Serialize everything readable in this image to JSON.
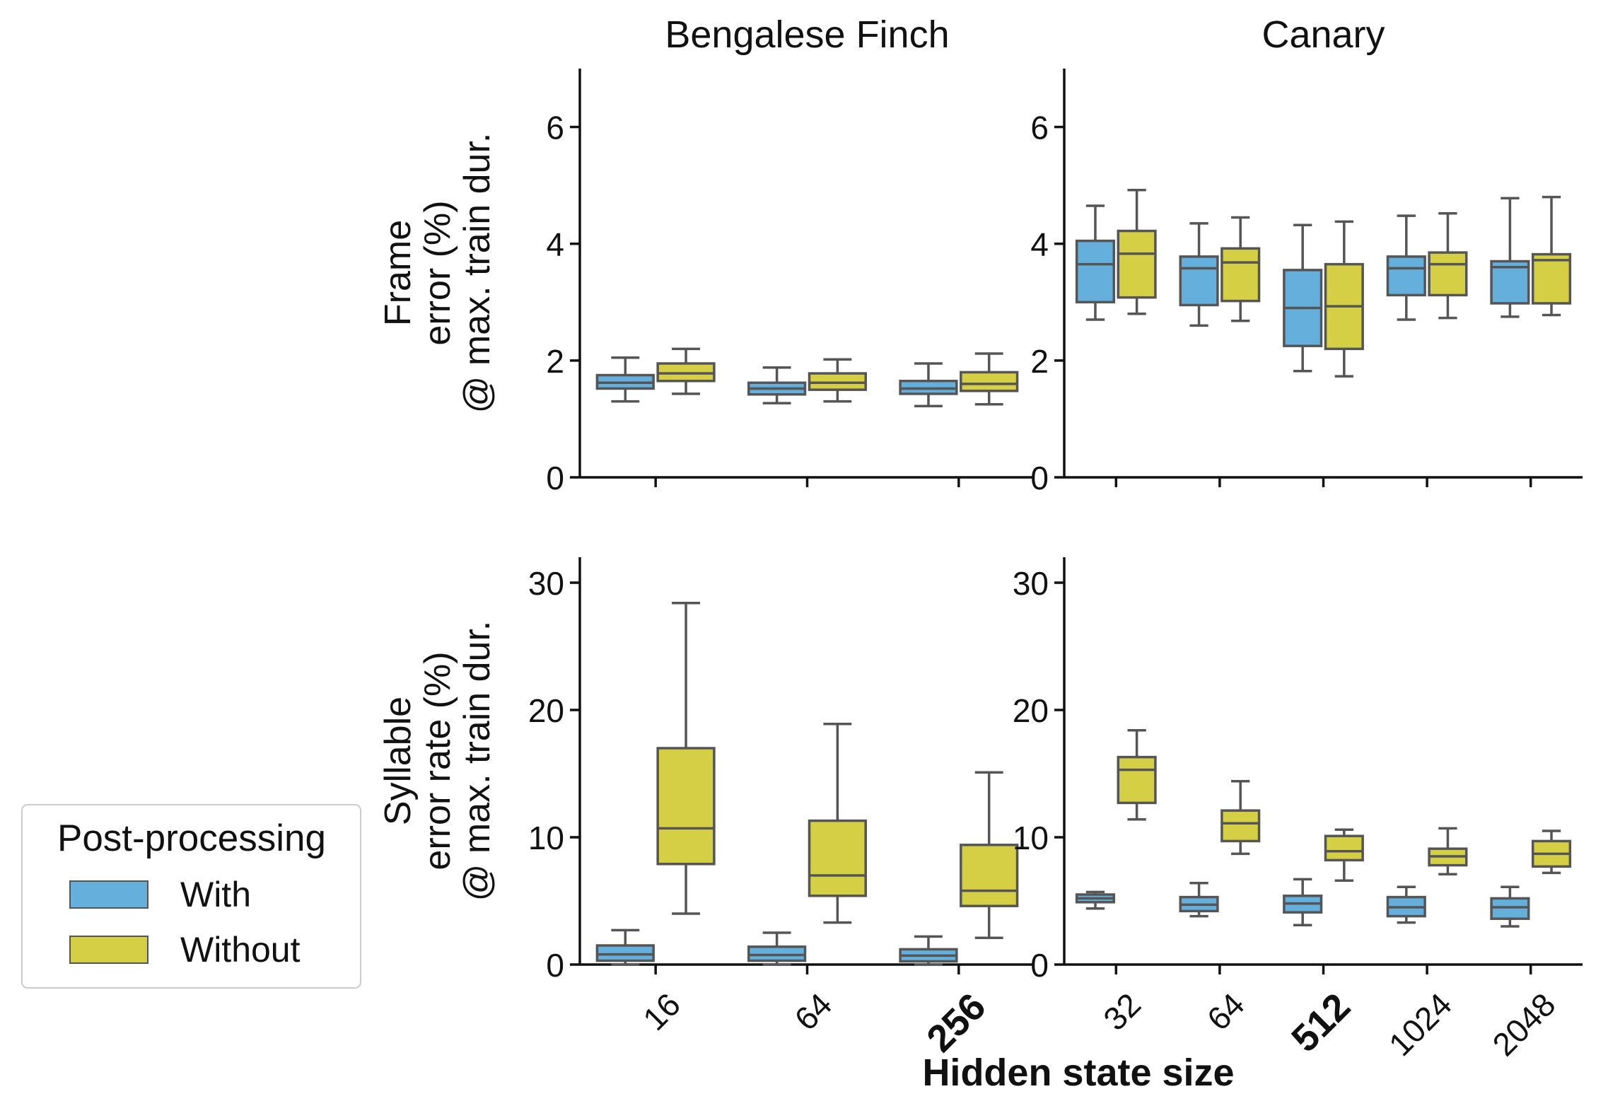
{
  "figure": {
    "xlabel": "Hidden state size",
    "legend": {
      "title": "Post-processing",
      "position": "left",
      "entries": [
        {
          "label": "With",
          "color": "#64afdc"
        },
        {
          "label": "Without",
          "color": "#d4cf44"
        }
      ]
    },
    "colors": {
      "with": "#64afdc",
      "without": "#d4cf44",
      "edge": "#555555"
    }
  },
  "chart_data": [
    {
      "type": "box",
      "title": "Bengalese Finch",
      "ylabel": [
        "Frame",
        "error (%)",
        "@ max. train dur."
      ],
      "ylim": [
        0,
        7
      ],
      "yticks": [
        0,
        2,
        4,
        6
      ],
      "categories": [
        "16",
        "64",
        "256"
      ],
      "bold_category": "256",
      "show_xticklabels": false,
      "series": [
        {
          "name": "With",
          "boxes": [
            {
              "whislo": 1.3,
              "q1": 1.52,
              "med": 1.62,
              "q3": 1.75,
              "whishi": 2.05
            },
            {
              "whislo": 1.27,
              "q1": 1.42,
              "med": 1.52,
              "q3": 1.62,
              "whishi": 1.88
            },
            {
              "whislo": 1.22,
              "q1": 1.43,
              "med": 1.52,
              "q3": 1.65,
              "whishi": 1.95
            }
          ]
        },
        {
          "name": "Without",
          "boxes": [
            {
              "whislo": 1.43,
              "q1": 1.65,
              "med": 1.78,
              "q3": 1.95,
              "whishi": 2.2
            },
            {
              "whislo": 1.3,
              "q1": 1.5,
              "med": 1.62,
              "q3": 1.78,
              "whishi": 2.02
            },
            {
              "whislo": 1.25,
              "q1": 1.48,
              "med": 1.6,
              "q3": 1.8,
              "whishi": 2.12
            }
          ]
        }
      ]
    },
    {
      "type": "box",
      "title": "Canary",
      "ylabel": [],
      "ylim": [
        0,
        7
      ],
      "yticks": [
        0,
        2,
        4,
        6
      ],
      "categories": [
        "32",
        "64",
        "512",
        "1024",
        "2048"
      ],
      "bold_category": "512",
      "show_xticklabels": false,
      "series": [
        {
          "name": "With",
          "boxes": [
            {
              "whislo": 2.7,
              "q1": 3.0,
              "med": 3.65,
              "q3": 4.05,
              "whishi": 4.65
            },
            {
              "whislo": 2.6,
              "q1": 2.95,
              "med": 3.58,
              "q3": 3.78,
              "whishi": 4.35
            },
            {
              "whislo": 1.82,
              "q1": 2.25,
              "med": 2.9,
              "q3": 3.55,
              "whishi": 4.32
            },
            {
              "whislo": 2.7,
              "q1": 3.12,
              "med": 3.58,
              "q3": 3.78,
              "whishi": 4.48
            },
            {
              "whislo": 2.75,
              "q1": 2.98,
              "med": 3.6,
              "q3": 3.7,
              "whishi": 4.78
            }
          ]
        },
        {
          "name": "Without",
          "boxes": [
            {
              "whislo": 2.8,
              "q1": 3.08,
              "med": 3.83,
              "q3": 4.22,
              "whishi": 4.92
            },
            {
              "whislo": 2.68,
              "q1": 3.02,
              "med": 3.68,
              "q3": 3.92,
              "whishi": 4.45
            },
            {
              "whislo": 1.73,
              "q1": 2.2,
              "med": 2.93,
              "q3": 3.65,
              "whishi": 4.38
            },
            {
              "whislo": 2.73,
              "q1": 3.12,
              "med": 3.65,
              "q3": 3.85,
              "whishi": 4.52
            },
            {
              "whislo": 2.78,
              "q1": 2.98,
              "med": 3.72,
              "q3": 3.82,
              "whishi": 4.8
            }
          ]
        }
      ]
    },
    {
      "type": "box",
      "title": "",
      "ylabel": [
        "Syllable",
        "error rate (%)",
        "@ max. train dur."
      ],
      "ylim": [
        0,
        32
      ],
      "yticks": [
        0,
        10,
        20,
        30
      ],
      "categories": [
        "16",
        "64",
        "256"
      ],
      "bold_category": "256",
      "show_xticklabels": true,
      "series": [
        {
          "name": "With",
          "boxes": [
            {
              "whislo": 0.0,
              "q1": 0.3,
              "med": 0.8,
              "q3": 1.5,
              "whishi": 2.7
            },
            {
              "whislo": 0.0,
              "q1": 0.3,
              "med": 0.75,
              "q3": 1.4,
              "whishi": 2.5
            },
            {
              "whislo": 0.0,
              "q1": 0.25,
              "med": 0.7,
              "q3": 1.2,
              "whishi": 2.2
            }
          ]
        },
        {
          "name": "Without",
          "boxes": [
            {
              "whislo": 4.0,
              "q1": 7.9,
              "med": 10.7,
              "q3": 17.0,
              "whishi": 28.4
            },
            {
              "whislo": 3.3,
              "q1": 5.4,
              "med": 7.0,
              "q3": 11.3,
              "whishi": 18.9
            },
            {
              "whislo": 2.1,
              "q1": 4.6,
              "med": 5.8,
              "q3": 9.4,
              "whishi": 15.1
            }
          ]
        }
      ]
    },
    {
      "type": "box",
      "title": "",
      "ylabel": [],
      "ylim": [
        0,
        32
      ],
      "yticks": [
        0,
        10,
        20,
        30
      ],
      "categories": [
        "32",
        "64",
        "512",
        "1024",
        "2048"
      ],
      "bold_category": "512",
      "show_xticklabels": true,
      "series": [
        {
          "name": "With",
          "boxes": [
            {
              "whislo": 4.4,
              "q1": 4.9,
              "med": 5.2,
              "q3": 5.5,
              "whishi": 5.7
            },
            {
              "whislo": 3.8,
              "q1": 4.2,
              "med": 4.7,
              "q3": 5.3,
              "whishi": 6.4
            },
            {
              "whislo": 3.1,
              "q1": 4.1,
              "med": 4.8,
              "q3": 5.4,
              "whishi": 6.7
            },
            {
              "whislo": 3.3,
              "q1": 3.8,
              "med": 4.5,
              "q3": 5.3,
              "whishi": 6.1
            },
            {
              "whislo": 3.0,
              "q1": 3.6,
              "med": 4.5,
              "q3": 5.2,
              "whishi": 6.1
            }
          ]
        },
        {
          "name": "Without",
          "boxes": [
            {
              "whislo": 11.4,
              "q1": 12.7,
              "med": 15.3,
              "q3": 16.3,
              "whishi": 18.4
            },
            {
              "whislo": 8.7,
              "q1": 9.7,
              "med": 11.1,
              "q3": 12.1,
              "whishi": 14.4
            },
            {
              "whislo": 6.6,
              "q1": 8.2,
              "med": 8.9,
              "q3": 10.1,
              "whishi": 10.6
            },
            {
              "whislo": 7.1,
              "q1": 7.8,
              "med": 8.5,
              "q3": 9.1,
              "whishi": 10.7
            },
            {
              "whislo": 7.2,
              "q1": 7.7,
              "med": 8.7,
              "q3": 9.7,
              "whishi": 10.5
            }
          ]
        }
      ]
    }
  ]
}
